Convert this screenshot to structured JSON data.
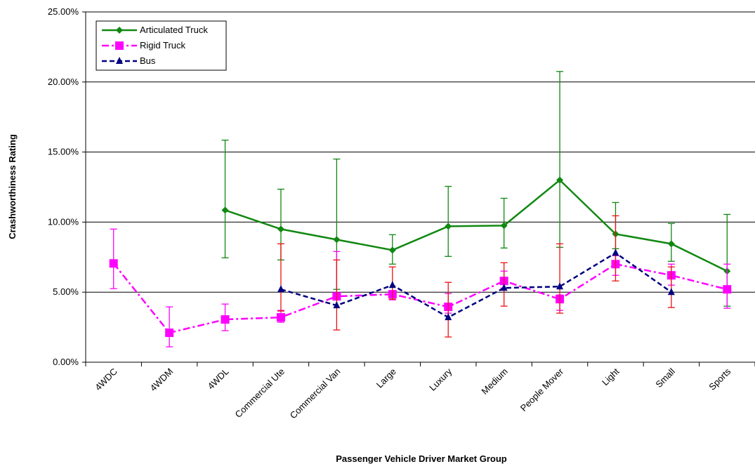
{
  "chart_data": {
    "type": "line",
    "x_label": "Passenger Vehicle Driver Market Group",
    "y_label": "Crashworthiness Rating",
    "categories": [
      "4WDC",
      "4WDM",
      "4WDL",
      "Commercial Ute",
      "Commercial Van",
      "Large",
      "Luxury",
      "Medium",
      "People Mover",
      "Light",
      "Small",
      "Sports"
    ],
    "ylim": [
      0,
      25
    ],
    "yticks": [
      {
        "value": 0,
        "label": "0.00%"
      },
      {
        "value": 5,
        "label": "5.00%"
      },
      {
        "value": 10,
        "label": "10.00%"
      },
      {
        "value": 15,
        "label": "15.00%"
      },
      {
        "value": 20,
        "label": "20.00%"
      },
      {
        "value": 25,
        "label": "25.00%"
      }
    ],
    "grid": true,
    "legend": "upper left",
    "series": [
      {
        "name": "Articulated Truck",
        "color": "#118811",
        "error_color": "#118811",
        "marker": "diamond",
        "dash": "solid",
        "values": [
          null,
          null,
          10.85,
          9.5,
          8.75,
          8.0,
          9.7,
          9.75,
          13.0,
          9.15,
          8.45,
          6.5
        ],
        "lower": [
          null,
          null,
          7.45,
          7.3,
          5.2,
          7.0,
          7.55,
          8.15,
          8.2,
          8.1,
          7.2,
          4.0
        ],
        "upper": [
          null,
          null,
          15.85,
          12.35,
          14.5,
          9.1,
          12.55,
          11.7,
          20.75,
          11.4,
          9.9,
          10.55
        ]
      },
      {
        "name": "Rigid Truck",
        "color": "#ff00ff",
        "error_color": "#ff00ff",
        "marker": "square",
        "dash": "dashdot",
        "values": [
          7.05,
          2.1,
          3.05,
          3.2,
          4.7,
          4.85,
          3.95,
          5.8,
          4.5,
          7.0,
          6.2,
          5.2
        ],
        "lower": [
          5.25,
          1.1,
          2.25,
          2.85,
          4.5,
          4.45,
          3.5,
          5.3,
          3.7,
          6.2,
          5.5,
          3.85
        ],
        "upper": [
          9.5,
          3.95,
          4.15,
          3.7,
          7.9,
          5.1,
          4.9,
          6.5,
          4.8,
          7.6,
          7.0,
          7.0
        ]
      },
      {
        "name": "Bus",
        "color": "#000080",
        "error_color": "#ee1111",
        "marker": "triangle",
        "dash": "dashed",
        "values": [
          null,
          null,
          null,
          5.2,
          4.05,
          5.5,
          3.2,
          5.3,
          5.4,
          7.8,
          5.0,
          null
        ],
        "lower": [
          null,
          null,
          null,
          3.65,
          2.3,
          4.5,
          1.8,
          4.0,
          3.5,
          5.8,
          3.9,
          null
        ],
        "upper": [
          null,
          null,
          null,
          8.45,
          7.3,
          6.8,
          5.7,
          7.1,
          8.45,
          10.45,
          6.8,
          null
        ]
      }
    ]
  }
}
